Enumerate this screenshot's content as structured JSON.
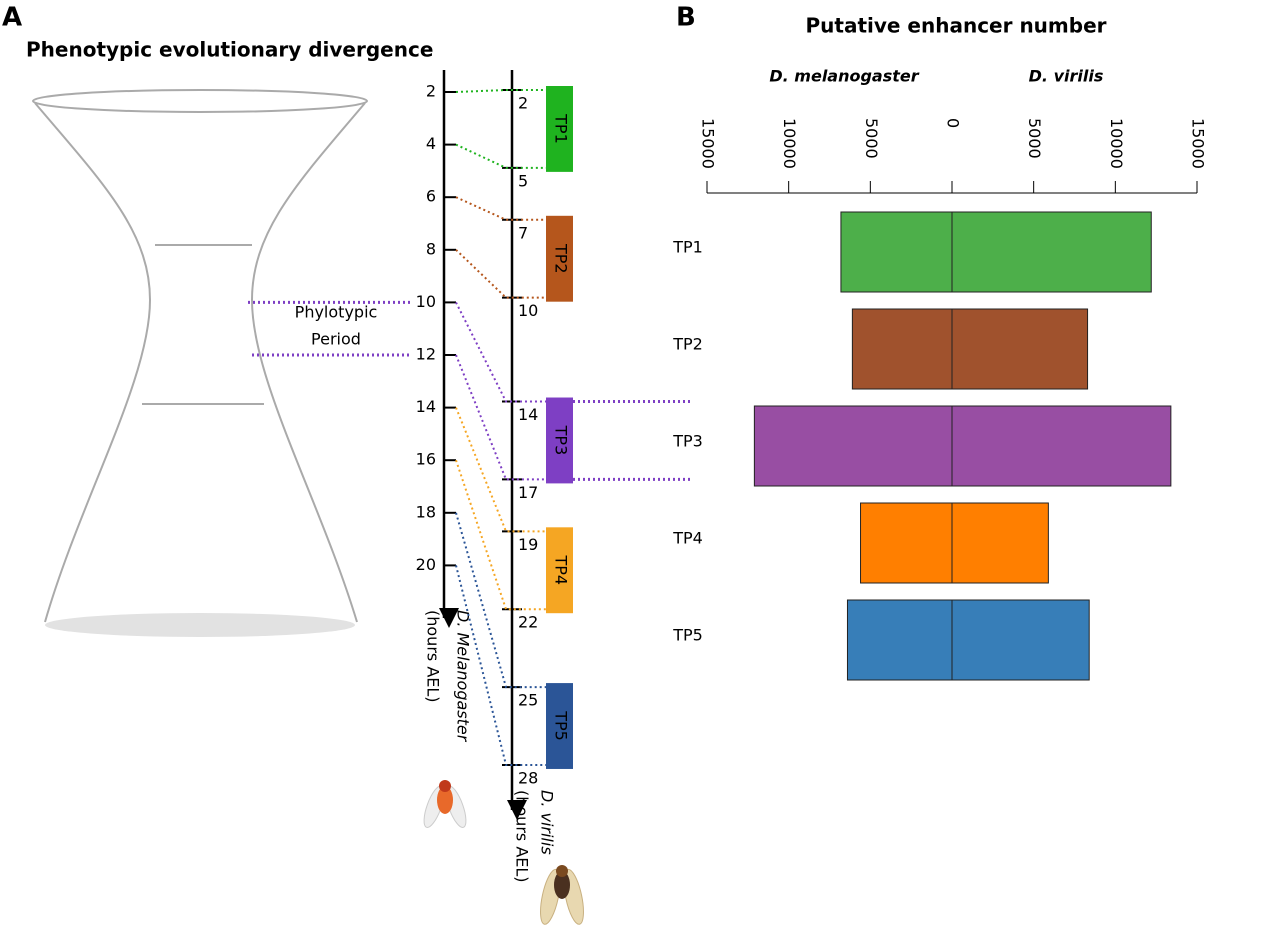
{
  "panel_a": {
    "label": "A",
    "title": "Phenotypic evolutionary divergence",
    "phylotypic": [
      "Phylotypic",
      "Period"
    ],
    "melanogaster_axis": {
      "label": [
        "D. Melanogaster",
        "(hours AEL)"
      ],
      "ticks": [
        2,
        4,
        6,
        8,
        10,
        12,
        14,
        16,
        18,
        20
      ]
    },
    "virilis_axis": {
      "label": [
        "D. virilis",
        "(hours AEL)"
      ],
      "ticks": [
        2,
        5,
        7,
        10,
        14,
        17,
        19,
        22,
        25,
        28
      ]
    },
    "time_points": [
      {
        "label": "TP1",
        "color": "#1fb31f",
        "melanogaster": [
          2,
          4
        ],
        "virilis": [
          2,
          5
        ]
      },
      {
        "label": "TP2",
        "color": "#b5561c",
        "melanogaster": [
          6,
          8
        ],
        "virilis": [
          7,
          10
        ]
      },
      {
        "label": "TP3",
        "color": "#7e3fc4",
        "melanogaster": [
          10,
          12
        ],
        "virilis": [
          14,
          17
        ]
      },
      {
        "label": "TP4",
        "color": "#f5a623",
        "melanogaster": [
          14,
          16
        ],
        "virilis": [
          19,
          22
        ]
      },
      {
        "label": "TP5",
        "color": "#2b5597",
        "melanogaster": [
          18,
          20
        ],
        "virilis": [
          25,
          28
        ]
      }
    ]
  },
  "chart_data": {
    "type": "butterfly",
    "label": "B",
    "title": "Putative enhancer number",
    "categories": [
      "TP1",
      "TP2",
      "TP3",
      "TP4",
      "TP5"
    ],
    "colors": [
      "#4daf4a",
      "#a0522d",
      "#984ea3",
      "#ff7f00",
      "#377eb8"
    ],
    "series": [
      {
        "name": "D. melanogaster",
        "values": [
          6800,
          6100,
          12100,
          5600,
          6400
        ]
      },
      {
        "name": "D. virilis",
        "values": [
          12200,
          8300,
          13400,
          5900,
          8400
        ]
      }
    ],
    "xlim": [
      0,
      15000
    ],
    "xticks": [
      15000,
      10000,
      5000,
      0,
      5000,
      10000,
      15000
    ]
  }
}
